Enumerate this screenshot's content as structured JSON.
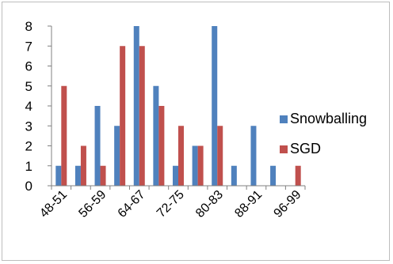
{
  "chart_data": {
    "type": "bar",
    "categories": [
      "48-51",
      "52-55",
      "56-59",
      "60-63",
      "64-67",
      "68-71",
      "72-75",
      "76-79",
      "80-83",
      "84-87",
      "88-91",
      "92-95",
      "96-99"
    ],
    "x_tick_labels_shown": [
      "48-51",
      "56-59",
      "64-67",
      "72-75",
      "80-83",
      "88-91",
      "96-99"
    ],
    "series": [
      {
        "name": "Snowballing",
        "color": "#4f81bd",
        "values": [
          1,
          1,
          4,
          3,
          8,
          5,
          1,
          2,
          8,
          1,
          3,
          1,
          0
        ]
      },
      {
        "name": "SGD",
        "color": "#c0504d",
        "values": [
          5,
          2,
          1,
          7,
          7,
          4,
          3,
          2,
          3,
          0,
          0,
          0,
          1
        ]
      }
    ],
    "ylim": [
      0,
      8
    ],
    "yticks": [
      "0",
      "1",
      "2",
      "3",
      "4",
      "5",
      "6",
      "7",
      "8"
    ],
    "grid": false,
    "legend_position": "right"
  }
}
